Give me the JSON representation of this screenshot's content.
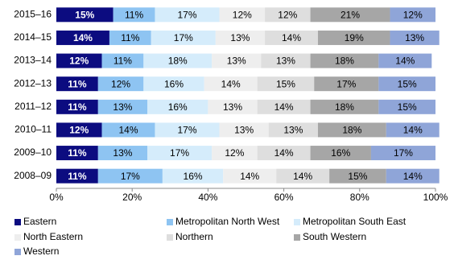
{
  "chart_data": {
    "type": "stacked-barh",
    "categories": [
      "2015–16",
      "2014–15",
      "2013–14",
      "2012–13",
      "2011–12",
      "2010–11",
      "2009–10",
      "2008–09"
    ],
    "series": [
      {
        "name": "Eastern",
        "color": "#0c0c80",
        "label_color": "#ffffff",
        "values": [
          15,
          14,
          12,
          11,
          11,
          12,
          11,
          11
        ],
        "value_labels": [
          "15%",
          "14%",
          "12%",
          "11%",
          "11%",
          "12%",
          "11%",
          "11%"
        ]
      },
      {
        "name": "Metropolitan North West",
        "color": "#8ec4f2",
        "label_color": "#000000",
        "values": [
          11,
          11,
          11,
          12,
          13,
          14,
          13,
          17
        ],
        "value_labels": [
          "11%",
          "11%",
          "11%",
          "12%",
          "13%",
          "14%",
          "13%",
          "17%"
        ]
      },
      {
        "name": "Metropolitan South East",
        "color": "#d5ecfb",
        "label_color": "#000000",
        "values": [
          17,
          17,
          18,
          16,
          16,
          17,
          17,
          16
        ],
        "value_labels": [
          "17%",
          "17%",
          "18%",
          "16%",
          "16%",
          "17%",
          "17%",
          "16%"
        ]
      },
      {
        "name": "North Eastern",
        "color": "#eeeeee",
        "label_color": "#000000",
        "values": [
          12,
          13,
          13,
          14,
          13,
          13,
          12,
          14
        ],
        "value_labels": [
          "12%",
          "13%",
          "13%",
          "14%",
          "13%",
          "13%",
          "12%",
          "14%"
        ]
      },
      {
        "name": "Northern",
        "color": "#dedede",
        "label_color": "#000000",
        "values": [
          12,
          14,
          13,
          15,
          14,
          13,
          14,
          14
        ],
        "value_labels": [
          "12%",
          "14%",
          "13%",
          "15%",
          "14%",
          "13%",
          "14%",
          "14%"
        ]
      },
      {
        "name": "South Western",
        "color": "#a6a6a6",
        "label_color": "#000000",
        "values": [
          21,
          19,
          18,
          17,
          18,
          18,
          16,
          15
        ],
        "value_labels": [
          "21%",
          "19%",
          "18%",
          "17%",
          "18%",
          "18%",
          "16%",
          "15%"
        ]
      },
      {
        "name": "Western",
        "color": "#8fa5d8",
        "label_color": "#000000",
        "values": [
          12,
          13,
          14,
          15,
          15,
          14,
          17,
          14
        ],
        "value_labels": [
          "12%",
          "13%",
          "14%",
          "15%",
          "15%",
          "14%",
          "17%",
          "14%"
        ]
      }
    ],
    "xlim": [
      0,
      100
    ],
    "xticks": [
      {
        "value": 0,
        "label": "0%"
      },
      {
        "value": 20,
        "label": "20%"
      },
      {
        "value": 40,
        "label": "40%"
      },
      {
        "value": 60,
        "label": "60%"
      },
      {
        "value": 80,
        "label": "80%"
      },
      {
        "value": 100,
        "label": "100%"
      }
    ],
    "legend": "bottom"
  }
}
